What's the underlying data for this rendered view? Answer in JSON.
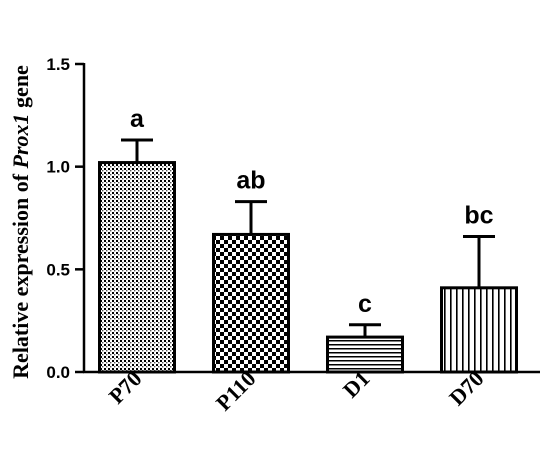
{
  "chart_data": {
    "type": "bar",
    "categories": [
      "P70",
      "P110",
      "D1",
      "D70"
    ],
    "values": [
      1.02,
      0.67,
      0.17,
      0.41
    ],
    "error_upper": [
      0.11,
      0.16,
      0.06,
      0.25
    ],
    "significance_letters": [
      "a",
      "ab",
      "c",
      "bc"
    ],
    "bar_patterns": [
      "fine-dots",
      "checker",
      "horizontal-lines",
      "vertical-lines"
    ],
    "ylabel_prefix": "Relative expression of ",
    "ylabel_gene": "Prox1",
    "ylabel_suffix": " gene",
    "ylim": [
      0,
      1.5
    ],
    "yticks": [
      0.0,
      0.5,
      1.0,
      1.5
    ],
    "ytick_labels": [
      "0.0",
      "0.5",
      "1.0",
      "1.5"
    ],
    "grid": false,
    "colors": {
      "bar_fill": "#ffffff",
      "pattern": "#000000",
      "axis": "#000000"
    }
  }
}
